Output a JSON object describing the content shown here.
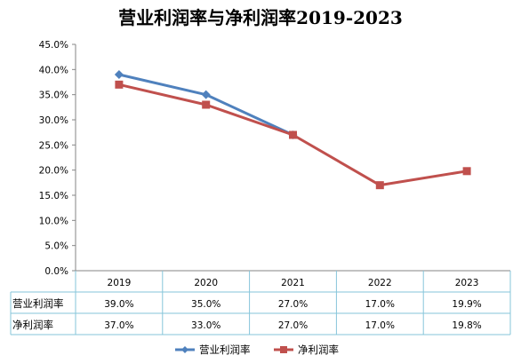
{
  "chart_data": {
    "type": "line",
    "title": "营业利润率与净利润率2019-2023",
    "categories": [
      "2019",
      "2020",
      "2021",
      "2022",
      "2023"
    ],
    "ylim": [
      0,
      45
    ],
    "ytick_step": 5,
    "ytick_labels": [
      "0.0%",
      "5.0%",
      "10.0%",
      "15.0%",
      "20.0%",
      "25.0%",
      "30.0%",
      "35.0%",
      "40.0%",
      "45.0%"
    ],
    "grid": false,
    "legend_position": "bottom",
    "series": [
      {
        "name": "营业利润率",
        "values": [
          39.0,
          35.0,
          27.0,
          null,
          null
        ],
        "table_values": [
          "39.0%",
          "35.0%",
          "27.0%",
          "17.0%",
          "19.9%"
        ],
        "color": "#4F81BD",
        "marker": "diamond"
      },
      {
        "name": "净利润率",
        "values": [
          37.0,
          33.0,
          27.0,
          17.0,
          19.8
        ],
        "table_values": [
          "37.0%",
          "33.0%",
          "27.0%",
          "17.0%",
          "19.8%"
        ],
        "color": "#C0504D",
        "marker": "square"
      }
    ],
    "table_border_color": "#86C5DA"
  }
}
